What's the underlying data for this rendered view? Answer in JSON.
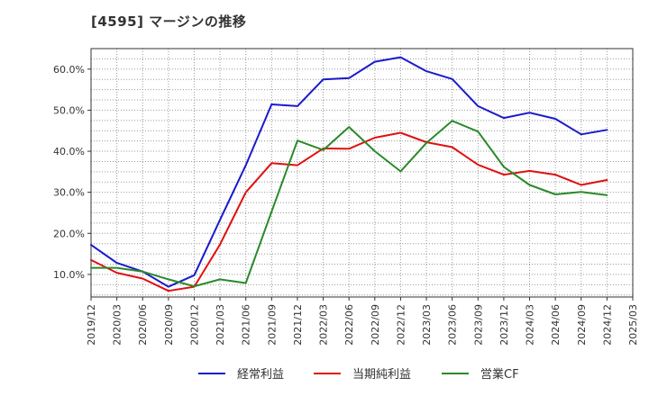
{
  "chart_data": {
    "type": "line",
    "title": "[4595]  マージンの推移",
    "x": [
      "2019/12",
      "2020/03",
      "2020/06",
      "2020/09",
      "2020/12",
      "2021/03",
      "2021/06",
      "2021/09",
      "2021/12",
      "2022/03",
      "2022/06",
      "2022/09",
      "2022/12",
      "2023/03",
      "2023/06",
      "2023/09",
      "2023/12",
      "2024/03",
      "2024/06",
      "2024/09",
      "2024/12"
    ],
    "x_ticks": [
      "2019/12",
      "2020/03",
      "2020/06",
      "2020/09",
      "2020/12",
      "2021/03",
      "2021/06",
      "2021/09",
      "2021/12",
      "2022/03",
      "2022/06",
      "2022/09",
      "2022/12",
      "2023/03",
      "2023/06",
      "2023/09",
      "2023/12",
      "2024/03",
      "2024/06",
      "2024/09",
      "2024/12",
      "2025/03"
    ],
    "y_ticks": [
      "10.0%",
      "20.0%",
      "30.0%",
      "40.0%",
      "50.0%",
      "60.0%"
    ],
    "y_tick_values": [
      10,
      20,
      30,
      40,
      50,
      60
    ],
    "ylim": [
      4.5,
      65
    ],
    "xlabel": "",
    "ylabel": "",
    "grid": true,
    "legend_position": "bottom",
    "series": [
      {
        "name": "経常利益",
        "color": "#1a1acc",
        "values": [
          17.2,
          12.8,
          10.7,
          7.0,
          9.8,
          23.3,
          36.6,
          51.4,
          51.0,
          57.5,
          57.8,
          61.8,
          62.9,
          59.5,
          57.6,
          51.0,
          48.1,
          49.4,
          47.9,
          44.1,
          45.2
        ]
      },
      {
        "name": "当期純利益",
        "color": "#e01010",
        "values": [
          13.5,
          10.4,
          9.0,
          6.0,
          7.0,
          17.3,
          30.0,
          37.1,
          36.6,
          40.7,
          40.6,
          43.3,
          44.5,
          42.2,
          41.0,
          36.7,
          34.3,
          35.2,
          34.3,
          31.8,
          33.0
        ]
      },
      {
        "name": "営業CF",
        "color": "#2a8a2a",
        "values": [
          11.6,
          11.6,
          10.7,
          8.8,
          7.1,
          8.8,
          7.9,
          25.3,
          42.6,
          40.3,
          45.9,
          40.0,
          35.1,
          42.0,
          47.4,
          44.8,
          36.2,
          31.8,
          29.5,
          30.1,
          29.3
        ]
      }
    ]
  }
}
